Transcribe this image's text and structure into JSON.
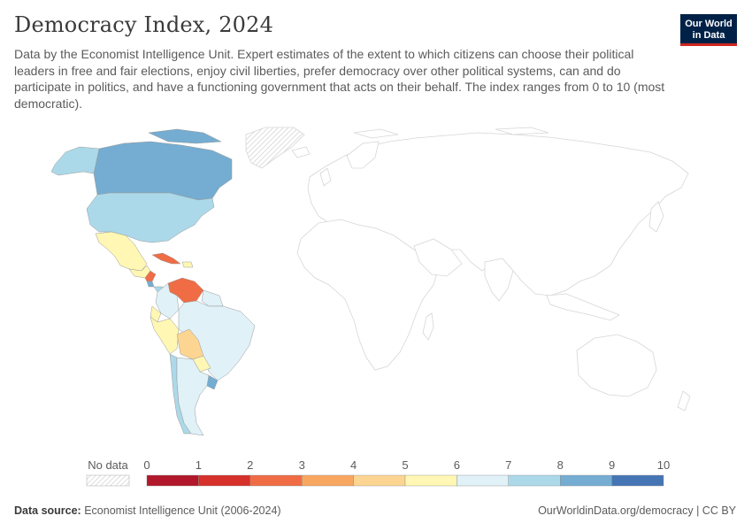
{
  "header": {
    "title": "Democracy Index, 2024",
    "subtitle": "Data by the Economist Intelligence Unit. Expert estimates of the extent to which citizens can choose their political leaders in free and fair elections, enjoy civil liberties, prefer democracy over other political systems, can and do participate in politics, and have a functioning government that acts on their behalf. The index ranges from 0 to 10 (most democratic)."
  },
  "logo": {
    "line1": "Our World",
    "line2": "in Data"
  },
  "chart_data": {
    "type": "choropleth-map",
    "title": "Democracy Index, 2024",
    "region_shown": "Americas (other regions shown as outlines only)",
    "legend": {
      "no_data_label": "No data",
      "ticks": [
        "0",
        "1",
        "2",
        "3",
        "4",
        "5",
        "6",
        "7",
        "8",
        "9",
        "10"
      ],
      "bins": [
        {
          "min": 0,
          "max": 1,
          "color": "#b2182b"
        },
        {
          "min": 1,
          "max": 2,
          "color": "#d6302b"
        },
        {
          "min": 2,
          "max": 3,
          "color": "#ef6c45"
        },
        {
          "min": 3,
          "max": 4,
          "color": "#f8a660"
        },
        {
          "min": 4,
          "max": 5,
          "color": "#fdd592"
        },
        {
          "min": 5,
          "max": 6,
          "color": "#fff7b3"
        },
        {
          "min": 6,
          "max": 7,
          "color": "#e0f1f7"
        },
        {
          "min": 7,
          "max": 8,
          "color": "#abd9e9"
        },
        {
          "min": 8,
          "max": 9,
          "color": "#74add1"
        },
        {
          "min": 9,
          "max": 10,
          "color": "#4575b4"
        }
      ]
    },
    "countries": [
      {
        "name": "Canada",
        "bin": 8
      },
      {
        "name": "Alaska",
        "bin": 7
      },
      {
        "name": "United States",
        "bin": 7
      },
      {
        "name": "Mexico",
        "bin": 5
      },
      {
        "name": "Central America",
        "bin": 5
      },
      {
        "name": "Nicaragua",
        "bin": 2
      },
      {
        "name": "Costa Rica",
        "bin": 8
      },
      {
        "name": "Panama",
        "bin": 7
      },
      {
        "name": "Cuba",
        "bin": 2
      },
      {
        "name": "Hispaniola",
        "bin": 5
      },
      {
        "name": "Venezuela",
        "bin": 2
      },
      {
        "name": "Colombia",
        "bin": 6
      },
      {
        "name": "Guianas",
        "bin": 6
      },
      {
        "name": "Ecuador",
        "bin": 5
      },
      {
        "name": "Peru",
        "bin": 5
      },
      {
        "name": "Brazil",
        "bin": 6
      },
      {
        "name": "Bolivia",
        "bin": 4
      },
      {
        "name": "Paraguay",
        "bin": 5
      },
      {
        "name": "Uruguay",
        "bin": 8
      },
      {
        "name": "Chile",
        "bin": 7
      },
      {
        "name": "Argentina",
        "bin": 6
      },
      {
        "name": "Greenland",
        "bin": null
      }
    ]
  },
  "footer": {
    "source_label": "Data source:",
    "source_text": "Economist Intelligence Unit (2006-2024)",
    "link": "OurWorldinData.org/democracy | CC BY"
  }
}
